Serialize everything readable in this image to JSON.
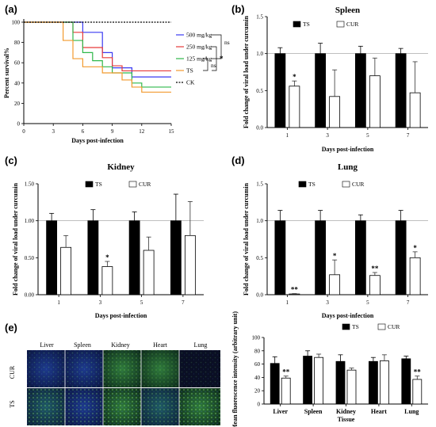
{
  "figure": {
    "panel_labels": [
      "(a)",
      "(b)",
      "(c)",
      "(d)",
      "(e)"
    ]
  },
  "colors": {
    "ts_bar": "#000000",
    "cur_bar": "#ffffff",
    "s500": "#3a3af2",
    "s250": "#e63a3a",
    "s125": "#2fb84a",
    "ts_line": "#f29a2e",
    "ck": "#000000"
  },
  "image_grid": {
    "columns": [
      "Liver",
      "Spleen",
      "Kidney",
      "Heart",
      "Lung"
    ],
    "rows": [
      "CUR",
      "TS"
    ]
  },
  "chart_data": [
    {
      "panel": "(a)",
      "type": "line",
      "step": true,
      "xlabel": "Days post-infection",
      "ylabel": "Percent survival%",
      "xlim": [
        0,
        15
      ],
      "ylim": [
        0,
        100
      ],
      "xticks": [
        0,
        3,
        6,
        9,
        12,
        15
      ],
      "yticks": [
        0,
        20,
        40,
        60,
        80,
        100
      ],
      "series": [
        {
          "name": "500 mg/kg",
          "x": [
            0,
            6,
            8,
            9,
            11,
            15
          ],
          "y": [
            100,
            90,
            70,
            55,
            46,
            46
          ]
        },
        {
          "name": "250 mg/kg",
          "x": [
            0,
            5,
            6,
            8,
            9,
            10,
            15
          ],
          "y": [
            100,
            90,
            75,
            65,
            57,
            52,
            52
          ]
        },
        {
          "name": "125 mg/kg",
          "x": [
            0,
            5,
            6,
            7,
            8,
            9,
            11,
            12,
            15
          ],
          "y": [
            100,
            82,
            70,
            62,
            56,
            50,
            40,
            36,
            36
          ]
        },
        {
          "name": "TS",
          "x": [
            0,
            4,
            5,
            6,
            8,
            10,
            11,
            12,
            15
          ],
          "y": [
            100,
            82,
            64,
            56,
            50,
            43,
            36,
            31,
            31
          ]
        },
        {
          "name": "CK",
          "x": [
            0,
            15
          ],
          "y": [
            100,
            100
          ]
        }
      ],
      "significance": [
        "*",
        "ns",
        "ns"
      ]
    },
    {
      "panel": "(b)",
      "type": "bar",
      "title": "Spleen",
      "xlabel": "Days post-infection",
      "ylabel": "Fold change of viral load under curcumin",
      "categories": [
        "1",
        "3",
        "5",
        "7"
      ],
      "ylim": [
        0,
        1.5
      ],
      "yticks": [
        0.0,
        0.5,
        1.0,
        1.5
      ],
      "series": [
        {
          "name": "TS",
          "values": [
            1.0,
            1.0,
            1.0,
            1.0
          ],
          "errors": [
            0.08,
            0.14,
            0.1,
            0.07
          ]
        },
        {
          "name": "CUR",
          "values": [
            0.56,
            0.42,
            0.7,
            0.47
          ],
          "errors": [
            0.07,
            0.36,
            0.24,
            0.42
          ]
        }
      ],
      "significance": [
        "*",
        "",
        "",
        ""
      ]
    },
    {
      "panel": "(c)",
      "type": "bar",
      "title": "Kidney",
      "xlabel": "Days post-infection",
      "ylabel": "Fold change of viral load under curcumin",
      "categories": [
        "1",
        "3",
        "5",
        "7"
      ],
      "ylim": [
        0,
        1.5
      ],
      "yticks": [
        0.0,
        0.5,
        1.0,
        1.5
      ],
      "series": [
        {
          "name": "TS",
          "values": [
            1.0,
            1.0,
            1.0,
            1.0
          ],
          "errors": [
            0.1,
            0.15,
            0.12,
            0.36
          ]
        },
        {
          "name": "CUR",
          "values": [
            0.64,
            0.38,
            0.6,
            0.8
          ],
          "errors": [
            0.16,
            0.07,
            0.18,
            0.46
          ]
        }
      ],
      "significance": [
        "",
        "*",
        "",
        ""
      ]
    },
    {
      "panel": "(d)",
      "type": "bar",
      "title": "Lung",
      "xlabel": "Days post-infection",
      "ylabel": "Fold change of viral load under curcumin",
      "categories": [
        "1",
        "3",
        "5",
        "7"
      ],
      "ylim": [
        0,
        1.5
      ],
      "yticks": [
        0.0,
        0.5,
        1.0,
        1.5
      ],
      "series": [
        {
          "name": "TS",
          "values": [
            1.0,
            1.0,
            1.0,
            1.0
          ],
          "errors": [
            0.14,
            0.14,
            0.08,
            0.14
          ]
        },
        {
          "name": "CUR",
          "values": [
            0.01,
            0.27,
            0.26,
            0.5
          ],
          "errors": [
            0.005,
            0.2,
            0.04,
            0.08
          ]
        }
      ],
      "significance": [
        "**",
        "*",
        "**",
        "*"
      ]
    },
    {
      "panel": "(e)",
      "type": "bar",
      "xlabel": "Tissue",
      "ylabel": "Mean fluorescence intensity (arbitrary unit)",
      "categories": [
        "Liver",
        "Spleen",
        "Kidney",
        "Heart",
        "Lung"
      ],
      "ylim": [
        0,
        100
      ],
      "yticks": [
        0,
        20,
        40,
        60,
        80,
        100
      ],
      "series": [
        {
          "name": "TS",
          "values": [
            61,
            72,
            64,
            64,
            68
          ],
          "errors": [
            10,
            8,
            10,
            6,
            4
          ]
        },
        {
          "name": "CUR",
          "values": [
            39,
            70,
            51,
            65,
            37
          ],
          "errors": [
            3,
            5,
            3,
            9,
            5
          ]
        }
      ],
      "significance": [
        "**",
        "",
        "",
        "",
        "**"
      ]
    }
  ]
}
